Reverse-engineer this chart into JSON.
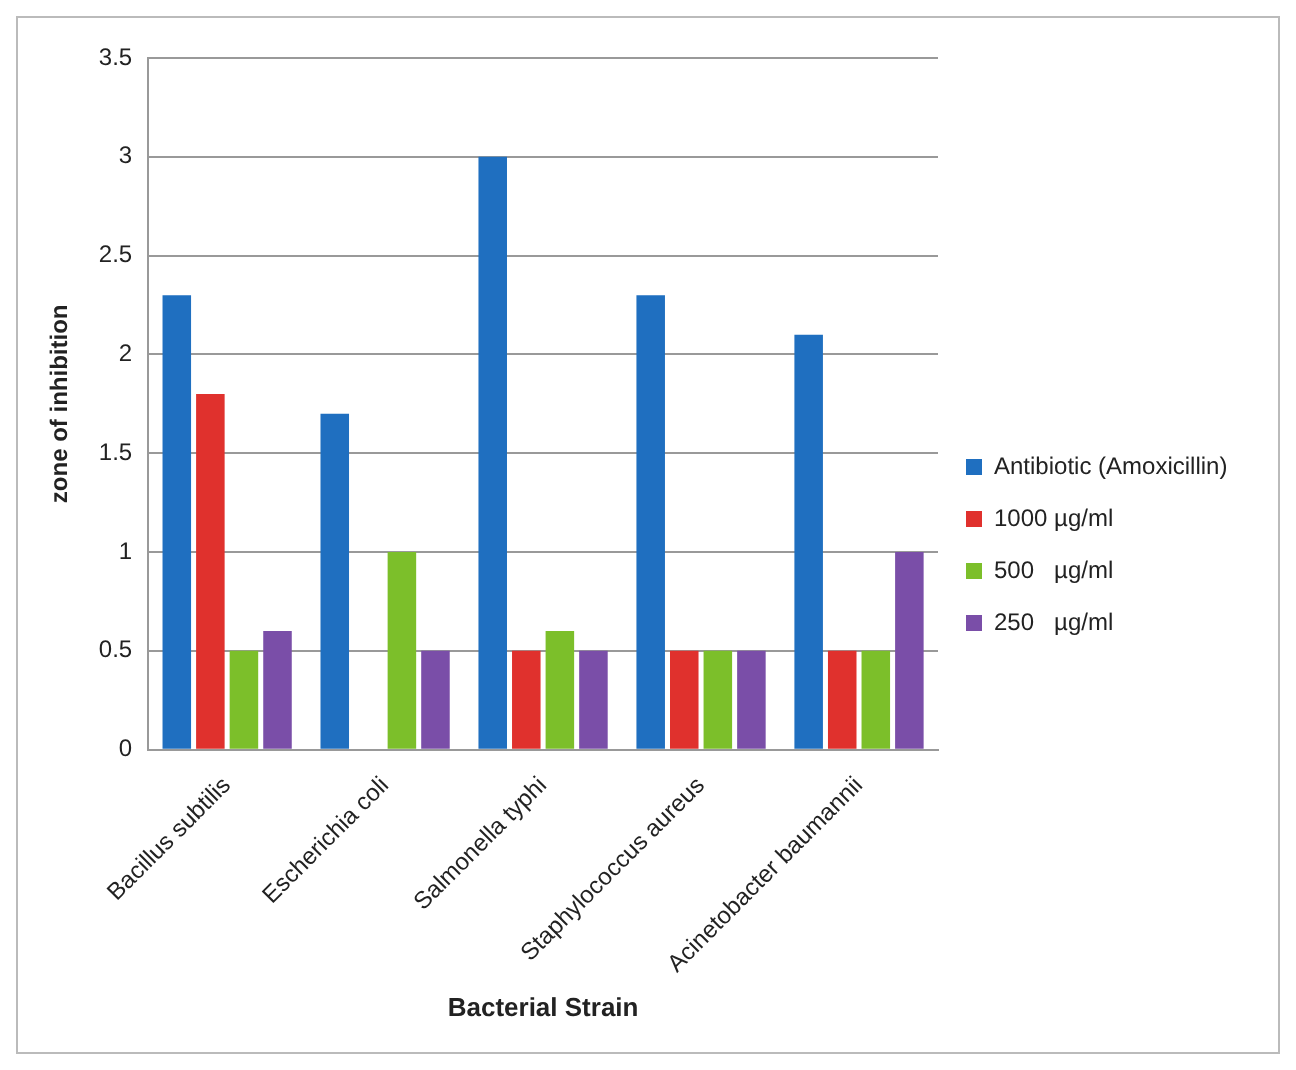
{
  "chart_data": {
    "type": "bar",
    "xlabel": "Bacterial Strain",
    "ylabel": "zone of inhibition",
    "categories": [
      "Bacillus subtilis",
      "Escherichia coli",
      "Salmonella typhi",
      "Staphylococcus aureus",
      "Acinetobacter baumannii"
    ],
    "series": [
      {
        "name": "Antibiotic (Amoxicillin)",
        "color": "#1f6fc0",
        "values": [
          2.3,
          1.7,
          3.0,
          2.3,
          2.1
        ]
      },
      {
        "name": "1000 µg/ml",
        "color": "#e0312d",
        "values": [
          1.8,
          null,
          0.5,
          0.5,
          0.5
        ]
      },
      {
        "name": "500   µg/ml",
        "color": "#7cbf2a",
        "values": [
          0.5,
          1.0,
          0.6,
          0.5,
          0.5
        ]
      },
      {
        "name": "250   µg/ml",
        "color": "#7a4ea8",
        "values": [
          0.6,
          0.5,
          0.5,
          0.5,
          1.0
        ]
      }
    ],
    "ylim": [
      0,
      3.5
    ],
    "yticks": [
      0,
      0.5,
      1,
      1.5,
      2,
      2.5,
      3,
      3.5
    ],
    "grid": "y",
    "legend": "right"
  }
}
